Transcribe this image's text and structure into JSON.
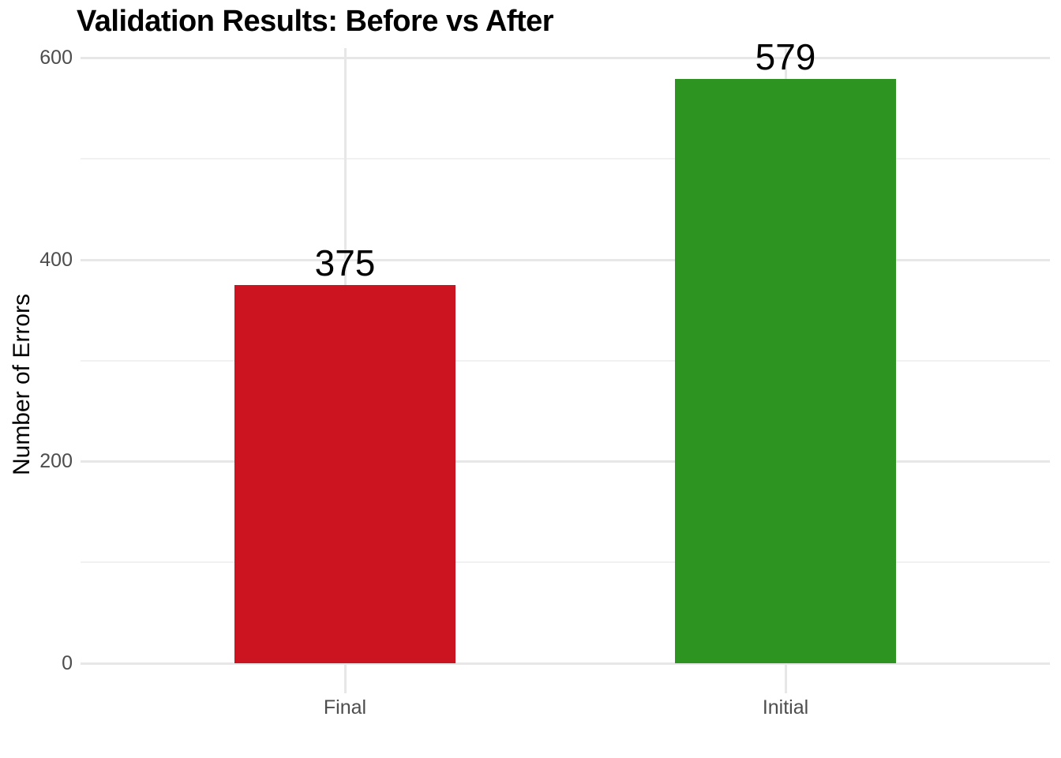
{
  "chart_data": {
    "type": "bar",
    "title": "Validation Results: Before vs After",
    "xlabel": "",
    "ylabel": "Number of Errors",
    "categories": [
      "Final",
      "Initial"
    ],
    "values": [
      375,
      579
    ],
    "value_labels": [
      "375",
      "579"
    ],
    "bar_colors": [
      "#cc1320",
      "#2d9422"
    ],
    "yticks": [
      "0",
      "200",
      "400",
      "600"
    ],
    "ytick_values": [
      0,
      200,
      400,
      600
    ],
    "ylim": [
      0,
      600
    ],
    "grid": {
      "horizontal_major": [
        0,
        200,
        400,
        600
      ],
      "horizontal_minor": [
        100,
        300,
        500
      ],
      "vertical_major_at_categories": true,
      "major_color": "#e7e7e7",
      "minor_color": "#f1f1f1"
    },
    "legend_position": "none",
    "background_color": "#ffffff",
    "axis_text_color": "#4d4d4d",
    "title_color": "#000000",
    "value_label_color": "#000000",
    "note": "579 value label is clipped at top edge of plot panel"
  }
}
